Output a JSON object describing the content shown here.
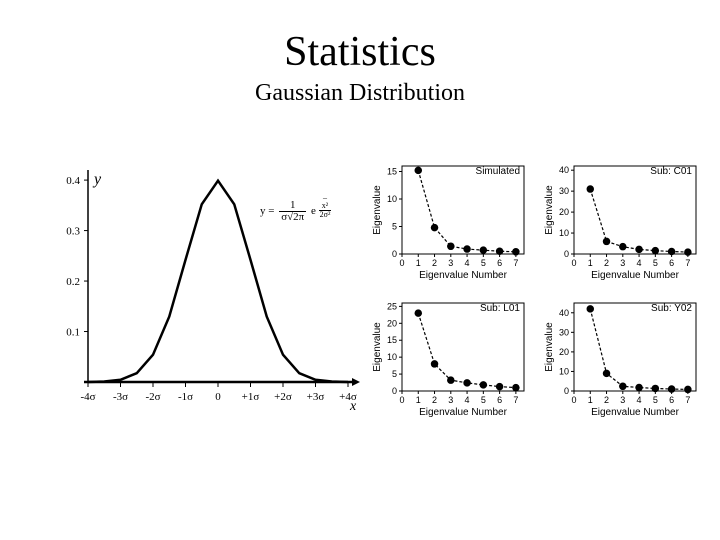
{
  "title": "Statistics",
  "subtitle": "Gaussian Distribution",
  "colors": {
    "background": "#ffffff",
    "text": "#000000",
    "line": "#000000",
    "marker": "#000000"
  },
  "gaussian": {
    "type": "line",
    "ylabel": "y",
    "xlabel": "x",
    "formula_lhs": "y =",
    "formula_frac_top": "1",
    "formula_frac_bot": "σ√2π",
    "formula_exp_base": "e",
    "formula_exp_top": "x²",
    "formula_exp_bot": "2σ²",
    "xlim": [
      -4,
      4
    ],
    "ylim": [
      0,
      0.42
    ],
    "xticks": [
      "-4σ",
      "-3σ",
      "-2σ",
      "-1σ",
      "0",
      "+1σ",
      "+2σ",
      "+3σ",
      "+4σ"
    ],
    "yticks": [
      "0.1",
      "0.2",
      "0.3",
      "0.4"
    ],
    "curve": [
      [
        -4.0,
        0.0001
      ],
      [
        -3.5,
        0.0009
      ],
      [
        -3.0,
        0.0044
      ],
      [
        -2.5,
        0.0175
      ],
      [
        -2.0,
        0.054
      ],
      [
        -1.5,
        0.1295
      ],
      [
        -1.0,
        0.242
      ],
      [
        -0.5,
        0.3521
      ],
      [
        0.0,
        0.3989
      ],
      [
        0.5,
        0.3521
      ],
      [
        1.0,
        0.242
      ],
      [
        1.5,
        0.1295
      ],
      [
        2.0,
        0.054
      ],
      [
        2.5,
        0.0175
      ],
      [
        3.0,
        0.0044
      ],
      [
        3.5,
        0.0009
      ],
      [
        4.0,
        0.0001
      ]
    ],
    "line_width": 2.5,
    "line_color": "#000000"
  },
  "scree": {
    "common": {
      "type": "scatter-line",
      "xlabel": "Eigenvalue Number",
      "ylabel": "Eigenvalue",
      "xticks": [
        0,
        1,
        2,
        3,
        4,
        5,
        6,
        7
      ],
      "marker": "circle",
      "marker_size": 4.5,
      "marker_color": "#000000",
      "line_color": "#000000",
      "line_width": 1.2,
      "dash": "3,2"
    },
    "panels": [
      {
        "title": "Simulated",
        "ylim": [
          0,
          16
        ],
        "yticks": [
          0,
          5,
          10,
          15
        ],
        "points": [
          [
            1,
            15.2
          ],
          [
            2,
            4.8
          ],
          [
            3,
            1.4
          ],
          [
            4,
            0.9
          ],
          [
            5,
            0.7
          ],
          [
            6,
            0.5
          ],
          [
            7,
            0.4
          ]
        ]
      },
      {
        "title": "Sub: C01",
        "ylim": [
          0,
          42
        ],
        "yticks": [
          0,
          10,
          20,
          30,
          40
        ],
        "points": [
          [
            1,
            31
          ],
          [
            2,
            6
          ],
          [
            3,
            3.5
          ],
          [
            4,
            2.2
          ],
          [
            5,
            1.6
          ],
          [
            6,
            1.2
          ],
          [
            7,
            0.9
          ]
        ]
      },
      {
        "title": "Sub: L01",
        "ylim": [
          0,
          26
        ],
        "yticks": [
          0,
          5,
          10,
          15,
          20,
          25
        ],
        "points": [
          [
            1,
            23
          ],
          [
            2,
            8
          ],
          [
            3,
            3.2
          ],
          [
            4,
            2.4
          ],
          [
            5,
            1.8
          ],
          [
            6,
            1.3
          ],
          [
            7,
            1.0
          ]
        ]
      },
      {
        "title": "Sub: Y02",
        "ylim": [
          0,
          45
        ],
        "yticks": [
          0,
          10,
          20,
          30,
          40
        ],
        "points": [
          [
            1,
            42
          ],
          [
            2,
            9
          ],
          [
            3,
            2.4
          ],
          [
            4,
            1.8
          ],
          [
            5,
            1.3
          ],
          [
            6,
            1.0
          ],
          [
            7,
            0.8
          ]
        ]
      }
    ]
  }
}
